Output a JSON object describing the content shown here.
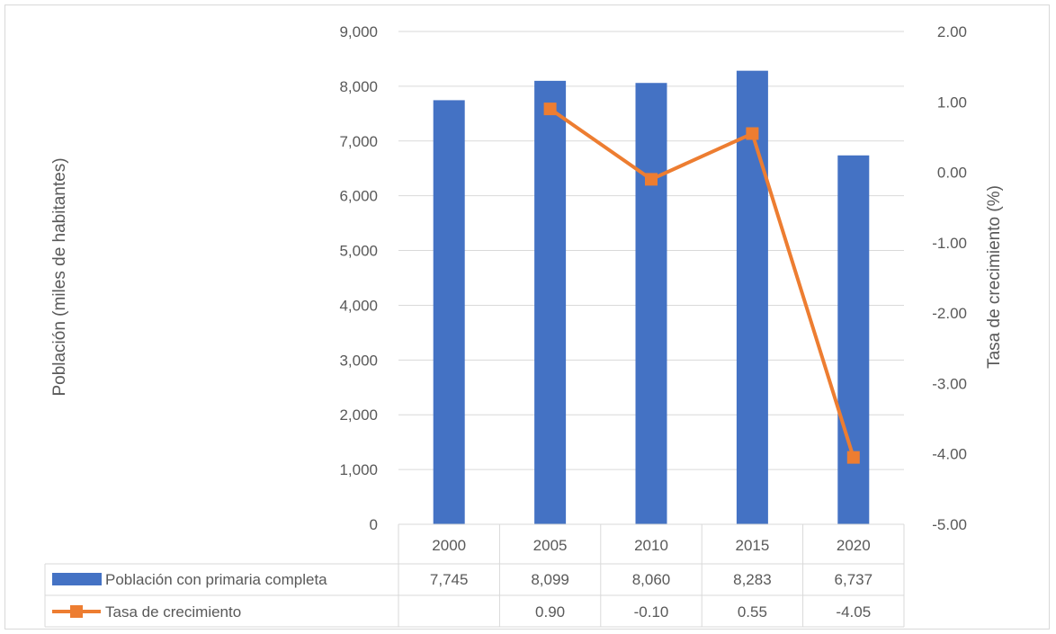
{
  "chart_data": {
    "type": "bar+line",
    "categories": [
      "2000",
      "2005",
      "2010",
      "2015",
      "2020"
    ],
    "series": [
      {
        "name": "Población con primaria completa",
        "kind": "bar",
        "axis": "left",
        "values": [
          7745,
          8099,
          8060,
          8283,
          6737
        ],
        "labels": [
          "7,745",
          "8,099",
          "8,060",
          "8,283",
          "6,737"
        ],
        "color": "#4472c4"
      },
      {
        "name": "Tasa de crecimiento",
        "kind": "line",
        "axis": "right",
        "values": [
          null,
          0.9,
          -0.1,
          0.55,
          -4.05
        ],
        "labels": [
          "",
          "0.90",
          "-0.10",
          "0.55",
          "-4.05"
        ],
        "color": "#ed7d31"
      }
    ],
    "ylabel": "Población (miles de habitantes)",
    "y2label": "Tasa de crecimiento (%)",
    "ylim": [
      0,
      9000
    ],
    "y2lim": [
      -5,
      2
    ],
    "yticks": [
      "0",
      "1,000",
      "2,000",
      "3,000",
      "4,000",
      "5,000",
      "6,000",
      "7,000",
      "8,000",
      "9,000"
    ],
    "y2ticks": [
      "-5.00",
      "-4.00",
      "-3.00",
      "-2.00",
      "-1.00",
      "0.00",
      "1.00",
      "2.00"
    ],
    "grid": true,
    "legend": "data-table"
  },
  "colors": {
    "grid": "#d9d9d9",
    "text": "#595959"
  }
}
